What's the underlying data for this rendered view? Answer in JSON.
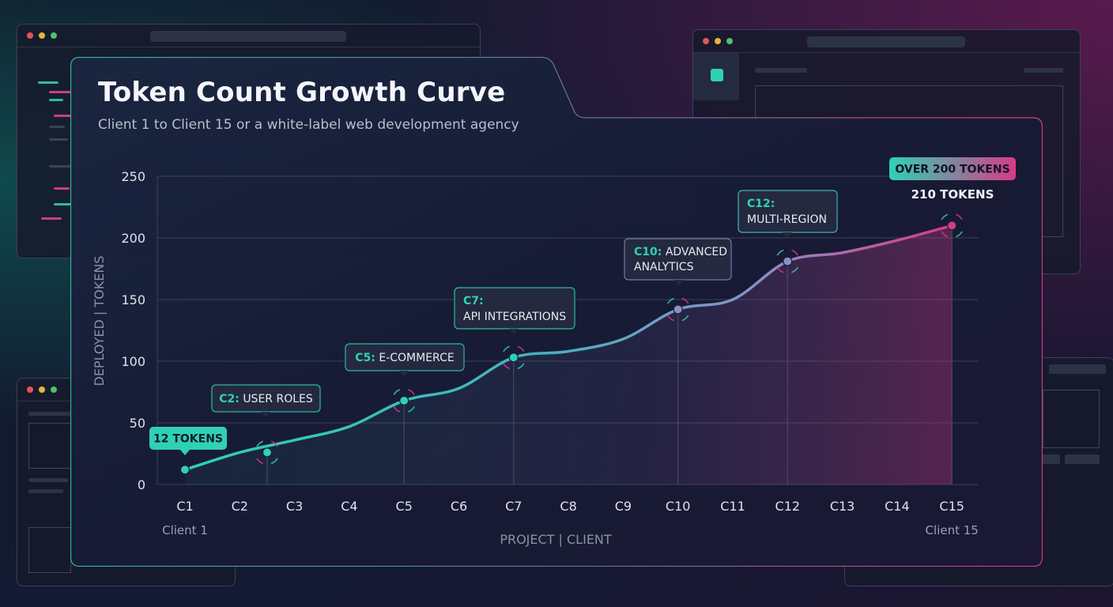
{
  "chart_data": {
    "type": "line",
    "title": "Token Count Growth Curve",
    "subtitle": "Client 1 to Client 15 or a white-label web development agency",
    "ylabel": "DEPLOYED | TOKENS",
    "xlabel": "PROJECT | CLIENT",
    "ylim": [
      0,
      250
    ],
    "yticks": [
      0,
      50,
      100,
      150,
      200,
      250
    ],
    "grid": true,
    "categories": [
      "C1",
      "C2",
      "C3",
      "C4",
      "C5",
      "C6",
      "C7",
      "C8",
      "C9",
      "C10",
      "C11",
      "C12",
      "C13",
      "C14",
      "C15"
    ],
    "start_label": "Client 1",
    "end_label": "Client 15",
    "series": [
      {
        "values": [
          12,
          26,
          36,
          47,
          68,
          78,
          103,
          108,
          118,
          142,
          150,
          181,
          188,
          198,
          210
        ]
      }
    ],
    "colors": {
      "start": "#2fd1b6",
      "mid": "#8a8fc6",
      "end": "#d63b86"
    },
    "markers": [
      {
        "x": "C1",
        "y": 12
      },
      {
        "x": "C2.5",
        "y": 26
      },
      {
        "x": "C5",
        "y": 68
      },
      {
        "x": "C7",
        "y": 103
      },
      {
        "x": "C10",
        "y": 142
      },
      {
        "x": "C12",
        "y": 181
      },
      {
        "x": "C15",
        "y": 210
      }
    ],
    "annotations": [
      {
        "lead": "",
        "text": "12 TOKENS",
        "style": "solid-teal"
      },
      {
        "lead": "C2:",
        "text": "USER ROLES",
        "style": "outline"
      },
      {
        "lead": "C5:",
        "text": "E-COMMERCE",
        "style": "outline"
      },
      {
        "lead": "C7:",
        "text": "API INTEGRATIONS",
        "style": "outline"
      },
      {
        "lead": "C10:",
        "text": "ADVANCED",
        "text2": "ANALYTICS",
        "style": "outline"
      },
      {
        "lead": "C12:",
        "text": "MULTI-REGION",
        "style": "outline"
      },
      {
        "lead": "",
        "text": "OVER 200 TOKENS",
        "style": "solid-gradient"
      }
    ],
    "end_value_label": "210 TOKENS"
  }
}
